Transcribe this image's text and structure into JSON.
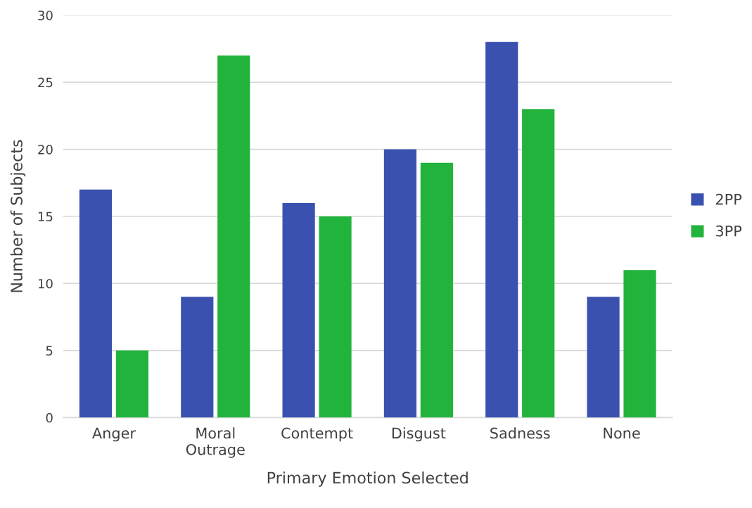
{
  "chart_data": {
    "type": "bar",
    "xlabel": "Primary Emotion Selected",
    "ylabel": "Number of Subjects",
    "categories": [
      "Anger",
      "Moral\nOutrage",
      "Contempt",
      "Disgust",
      "Sadness",
      "None"
    ],
    "series": [
      {
        "name": "2PP",
        "color": "#3a51b0",
        "values": [
          17,
          9,
          16,
          20,
          28,
          9
        ]
      },
      {
        "name": "3PP",
        "color": "#22b33c",
        "values": [
          5,
          27,
          15,
          19,
          23,
          11
        ]
      }
    ],
    "ylim": [
      0,
      30
    ],
    "yticks": [
      0,
      5,
      10,
      15,
      20,
      25,
      30
    ],
    "grid": "y",
    "legend": "right"
  }
}
